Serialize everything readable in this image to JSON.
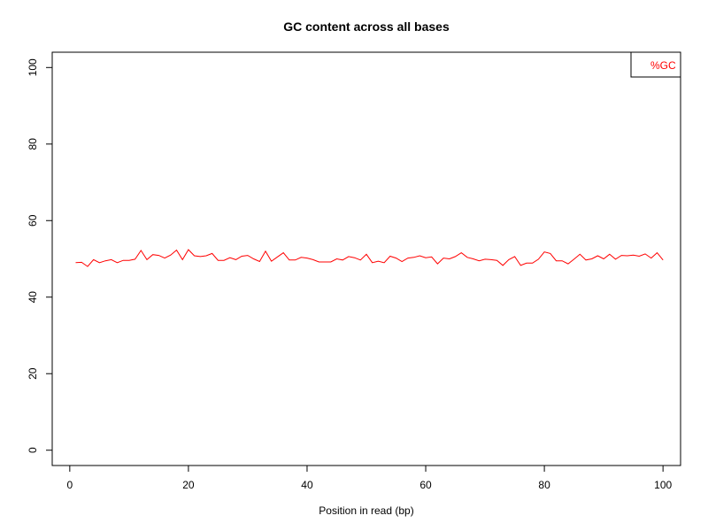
{
  "chart_data": {
    "type": "line",
    "title": "GC content across all bases",
    "xlabel": "Position in read (bp)",
    "ylabel": "",
    "xlim": [
      -2.96,
      102.96
    ],
    "ylim": [
      -4,
      104
    ],
    "xticks": [
      0,
      20,
      40,
      60,
      80,
      100
    ],
    "yticks": [
      0,
      20,
      40,
      60,
      80,
      100
    ],
    "grid": false,
    "legend_position": "top-right",
    "series": [
      {
        "name": "%GC",
        "color": "#ff0000",
        "x": [
          1,
          2,
          3,
          4,
          5,
          6,
          7,
          8,
          9,
          10,
          11,
          12,
          13,
          14,
          15,
          16,
          17,
          18,
          19,
          20,
          21,
          22,
          23,
          24,
          25,
          26,
          27,
          28,
          29,
          30,
          31,
          32,
          33,
          34,
          35,
          36,
          37,
          38,
          39,
          40,
          41,
          42,
          43,
          44,
          45,
          46,
          47,
          48,
          49,
          50,
          51,
          52,
          53,
          54,
          55,
          56,
          57,
          58,
          59,
          60,
          61,
          62,
          63,
          64,
          65,
          66,
          67,
          68,
          69,
          70,
          71,
          72,
          73,
          74,
          75,
          76,
          77,
          78,
          79,
          80,
          81,
          82,
          83,
          84,
          85,
          86,
          87,
          88,
          89,
          90,
          91,
          92,
          93,
          94,
          95,
          96,
          97,
          98,
          99,
          100
        ],
        "values": [
          49.0,
          49.1,
          48.0,
          49.8,
          49.0,
          49.5,
          49.8,
          49.0,
          49.6,
          49.6,
          49.9,
          52.2,
          49.8,
          51.1,
          50.9,
          50.2,
          51.0,
          52.3,
          49.8,
          52.4,
          50.8,
          50.6,
          50.8,
          51.4,
          49.6,
          49.6,
          50.3,
          49.8,
          50.7,
          50.9,
          50.0,
          49.3,
          52.0,
          49.4,
          50.5,
          51.6,
          49.7,
          49.7,
          50.4,
          50.2,
          49.8,
          49.2,
          49.2,
          49.2,
          50.0,
          49.7,
          50.6,
          50.3,
          49.7,
          51.2,
          49.0,
          49.4,
          49.0,
          50.7,
          50.2,
          49.3,
          50.2,
          50.4,
          50.8,
          50.3,
          50.5,
          48.7,
          50.2,
          50.0,
          50.6,
          51.6,
          50.4,
          50.0,
          49.5,
          49.9,
          49.8,
          49.6,
          48.3,
          49.8,
          50.6,
          48.3,
          48.9,
          48.9,
          49.9,
          51.8,
          51.4,
          49.5,
          49.5,
          48.7,
          49.9,
          51.2,
          49.7,
          50.0,
          50.8,
          50.0,
          51.2,
          49.9,
          50.9,
          50.8,
          51.0,
          50.7,
          51.3,
          50.2,
          51.6,
          49.7
        ]
      }
    ]
  }
}
